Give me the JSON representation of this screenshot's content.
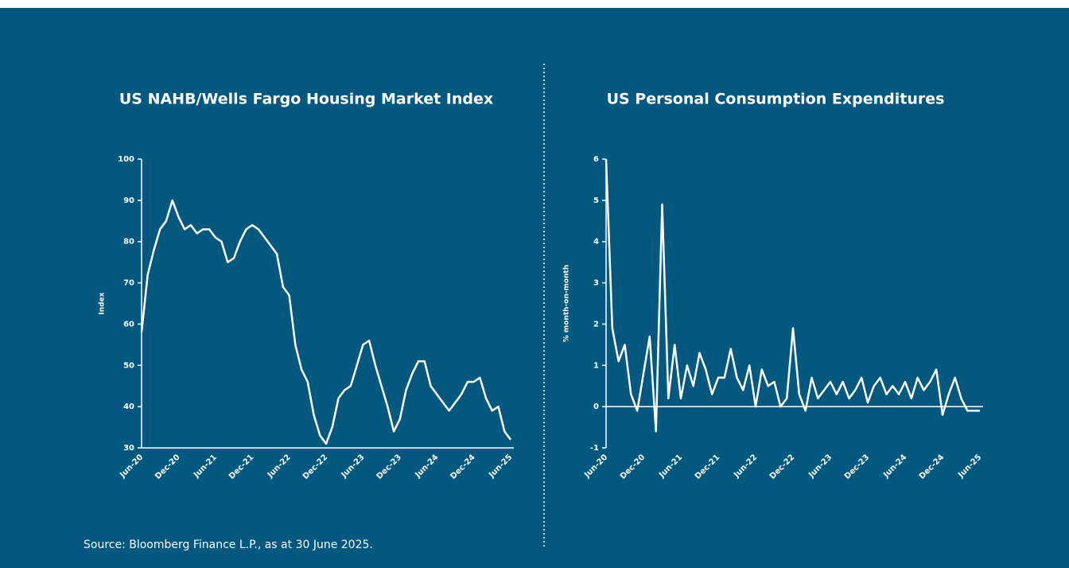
{
  "chart_data": [
    {
      "type": "line",
      "title": "US NAHB/Wells Fargo Housing Market Index",
      "ylabel": "Index",
      "color": "#ffffff",
      "categories": [
        "Jun-20",
        null,
        null,
        null,
        null,
        null,
        "Dec-20",
        null,
        null,
        null,
        null,
        null,
        "Jun-21",
        null,
        null,
        null,
        null,
        null,
        "Dec-21",
        null,
        null,
        null,
        null,
        null,
        "Jun-22",
        null,
        null,
        null,
        null,
        null,
        "Dec-22",
        null,
        null,
        null,
        null,
        null,
        "Jun-23",
        null,
        null,
        null,
        null,
        null,
        "Dec-23",
        null,
        null,
        null,
        null,
        null,
        "Jun-24",
        null,
        null,
        null,
        null,
        null,
        "Dec-24",
        null,
        null,
        null,
        null,
        null,
        "Jun-25"
      ],
      "values": [
        58,
        72,
        78,
        83,
        85,
        90,
        86,
        83,
        84,
        82,
        83,
        83,
        81,
        80,
        75,
        76,
        80,
        83,
        84,
        83,
        81,
        79,
        77,
        69,
        67,
        55,
        49,
        46,
        38,
        33,
        31,
        35,
        42,
        44,
        45,
        50,
        55,
        56,
        50,
        45,
        40,
        34,
        37,
        44,
        48,
        51,
        51,
        45,
        43,
        41,
        39,
        41,
        43,
        46,
        46,
        47,
        42,
        39,
        40,
        34,
        32
      ],
      "ylim": [
        30,
        100
      ],
      "yticks": [
        30,
        40,
        50,
        60,
        70,
        80,
        90,
        100
      ]
    },
    {
      "type": "line",
      "title": "US Personal Consumption Expenditures",
      "ylabel": "% month-on-month",
      "color": "#ffffff",
      "categories": [
        "Jun-20",
        null,
        null,
        null,
        null,
        null,
        "Dec-20",
        null,
        null,
        null,
        null,
        null,
        "Jun-21",
        null,
        null,
        null,
        null,
        null,
        "Dec-21",
        null,
        null,
        null,
        null,
        null,
        "Jun-22",
        null,
        null,
        null,
        null,
        null,
        "Dec-22",
        null,
        null,
        null,
        null,
        null,
        "Jun-23",
        null,
        null,
        null,
        null,
        null,
        "Dec-23",
        null,
        null,
        null,
        null,
        null,
        "Jun-24",
        null,
        null,
        null,
        null,
        null,
        "Dec-24",
        null,
        null,
        null,
        null,
        null,
        "Jun-25"
      ],
      "values": [
        6.0,
        1.9,
        1.1,
        1.5,
        0.3,
        -0.1,
        0.8,
        1.7,
        -0.6,
        4.9,
        0.2,
        1.5,
        0.2,
        1.0,
        0.5,
        1.3,
        0.9,
        0.3,
        0.7,
        0.7,
        1.4,
        0.7,
        0.4,
        1.0,
        0.0,
        0.9,
        0.5,
        0.6,
        0.0,
        0.2,
        1.9,
        0.3,
        -0.1,
        0.7,
        0.2,
        0.4,
        0.6,
        0.3,
        0.6,
        0.2,
        0.4,
        0.7,
        0.1,
        0.5,
        0.7,
        0.3,
        0.5,
        0.3,
        0.6,
        0.2,
        0.7,
        0.4,
        0.6,
        0.9,
        -0.2,
        0.3,
        0.7,
        0.2,
        -0.1,
        -0.1,
        -0.1
      ],
      "ylim": [
        -1,
        6
      ],
      "yticks": [
        -1,
        0,
        1,
        2,
        3,
        4,
        5,
        6
      ]
    }
  ],
  "source": "Source: Bloomberg Finance L.P., as at 30 June 2025."
}
